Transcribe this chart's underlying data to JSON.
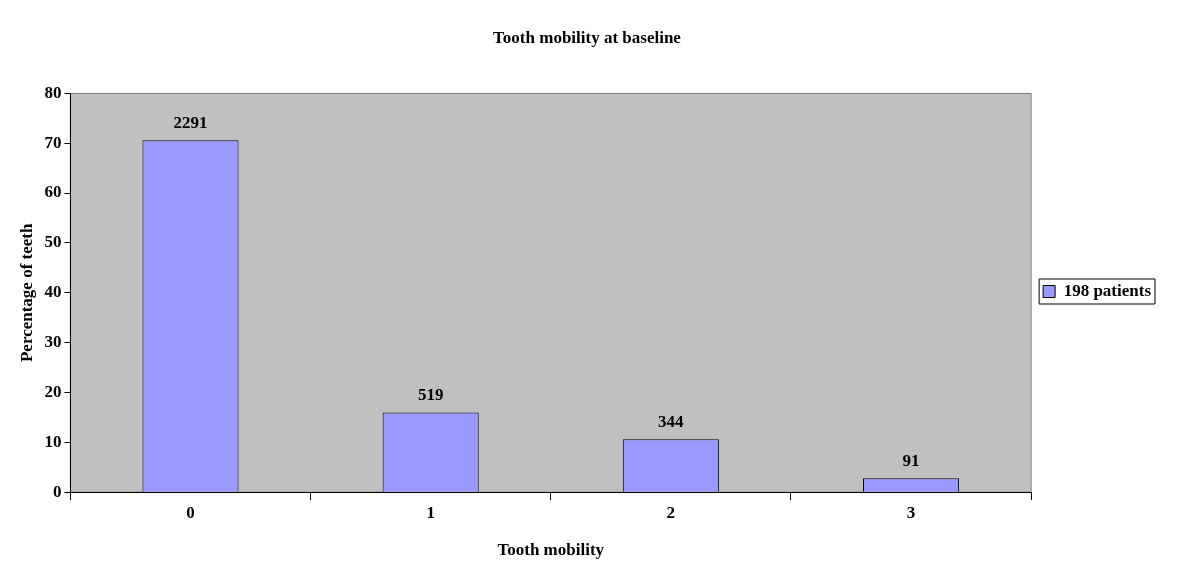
{
  "chart_data": {
    "type": "bar",
    "title": "Tooth mobility at baseline",
    "xlabel": "Tooth mobility",
    "ylabel": "Percentage of teeth",
    "categories": [
      "0",
      "1",
      "2",
      "3"
    ],
    "series": [
      {
        "name": "198 patients",
        "color": "#9999ff",
        "values": [
          70.6,
          16.0,
          10.6,
          2.8
        ]
      }
    ],
    "annotations": [
      {
        "text": "2291",
        "x": "0",
        "y": 70.6
      },
      {
        "text": "519",
        "x": "1",
        "y": 16.0
      },
      {
        "text": "344",
        "x": "2",
        "y": 10.6
      },
      {
        "text": "91",
        "x": "3",
        "y": 2.8
      }
    ],
    "ylim": [
      0,
      80
    ],
    "yticks": [
      0,
      10,
      20,
      30,
      40,
      50,
      60,
      70,
      80
    ],
    "legend": "right"
  }
}
